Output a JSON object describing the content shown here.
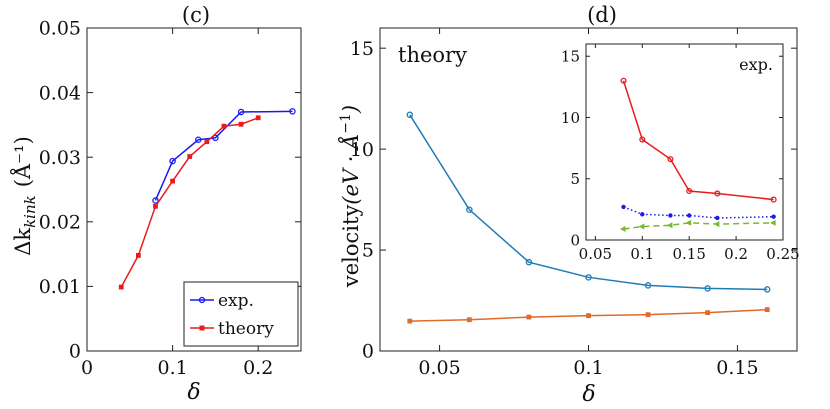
{
  "chart_data": [
    {
      "type": "line",
      "panel": "(c)",
      "xlabel": "δ",
      "ylabel_main": "Δk",
      "ylabel_sub": "kink",
      "ylabel_unit": "(Å⁻¹)",
      "xlim": [
        0,
        0.25
      ],
      "ylim": [
        0,
        0.05
      ],
      "xticks": [
        "0",
        "0.1",
        "0.2"
      ],
      "xtick_values": [
        0,
        0.1,
        0.2
      ],
      "yticks": [
        "0",
        "0.01",
        "0.02",
        "0.03",
        "0.04",
        "0.05"
      ],
      "ytick_values": [
        0,
        0.01,
        0.02,
        0.03,
        0.04,
        0.05
      ],
      "legend_position": "bottom-right",
      "series": [
        {
          "name": "exp.",
          "color": "#1a1aee",
          "marker": "circle",
          "x": [
            0.08,
            0.1,
            0.13,
            0.15,
            0.18,
            0.24
          ],
          "y": [
            0.0233,
            0.0294,
            0.0327,
            0.033,
            0.037,
            0.0371
          ]
        },
        {
          "name": "theory",
          "color": "#e81c1c",
          "marker": "square",
          "x": [
            0.04,
            0.06,
            0.08,
            0.1,
            0.12,
            0.14,
            0.16,
            0.18,
            0.2
          ],
          "y": [
            0.0099,
            0.0148,
            0.0224,
            0.0263,
            0.0301,
            0.0324,
            0.0348,
            0.0351,
            0.0361
          ]
        }
      ]
    },
    {
      "type": "line",
      "panel": "(d)",
      "xlabel": "δ",
      "ylabel_text": "velocity",
      "ylabel_unit_open": "(eV · ",
      "ylabel_unit_A": "Å",
      "ylabel_unit_exp": "−1",
      "ylabel_unit_close": ")",
      "annotation": "theory",
      "xlim": [
        0.03,
        0.17
      ],
      "ylim": [
        0,
        16
      ],
      "xticks": [
        "0.05",
        "0.1",
        "0.15"
      ],
      "xtick_values": [
        0.05,
        0.1,
        0.15
      ],
      "yticks": [
        "0",
        "5",
        "10",
        "15"
      ],
      "ytick_values": [
        0,
        5,
        10,
        15
      ],
      "series": [
        {
          "name": "theory-upper",
          "color": "#1f7bb8",
          "marker": "circle",
          "x": [
            0.04,
            0.06,
            0.08,
            0.1,
            0.12,
            0.14,
            0.16
          ],
          "y": [
            11.7,
            7.0,
            4.4,
            3.65,
            3.25,
            3.1,
            3.05
          ]
        },
        {
          "name": "theory-lower",
          "color": "#e06a2a",
          "marker": "square",
          "x": [
            0.04,
            0.06,
            0.08,
            0.1,
            0.12,
            0.14,
            0.16
          ],
          "y": [
            1.48,
            1.55,
            1.68,
            1.75,
            1.8,
            1.9,
            2.05
          ]
        }
      ]
    },
    {
      "type": "line",
      "panel": "(d) inset",
      "annotation": "exp.",
      "xlim": [
        0.04,
        0.25
      ],
      "ylim": [
        0,
        16
      ],
      "xticks": [
        "0.05",
        "0.1",
        "0.15",
        "0.2",
        "0.25"
      ],
      "xtick_values": [
        0.05,
        0.1,
        0.15,
        0.2,
        0.25
      ],
      "yticks": [
        "0",
        "5",
        "10",
        "15"
      ],
      "ytick_values": [
        0,
        5,
        10,
        15
      ],
      "series": [
        {
          "name": "exp-red",
          "color": "#e81c1c",
          "marker": "circle",
          "dash": "solid",
          "x": [
            0.08,
            0.1,
            0.13,
            0.15,
            0.18,
            0.24
          ],
          "y": [
            13.0,
            8.2,
            6.6,
            4.0,
            3.8,
            3.3
          ]
        },
        {
          "name": "exp-blue",
          "color": "#1a1aee",
          "marker": "dot",
          "dash": "dotted",
          "x": [
            0.08,
            0.1,
            0.13,
            0.15,
            0.18,
            0.24
          ],
          "y": [
            2.7,
            2.1,
            2.0,
            2.0,
            1.8,
            1.9
          ]
        },
        {
          "name": "exp-green",
          "color": "#77b82e",
          "marker": "arrow",
          "dash": "dashed",
          "x": [
            0.08,
            0.1,
            0.13,
            0.15,
            0.18,
            0.24
          ],
          "y": [
            0.9,
            1.1,
            1.2,
            1.4,
            1.3,
            1.4
          ]
        }
      ]
    }
  ]
}
